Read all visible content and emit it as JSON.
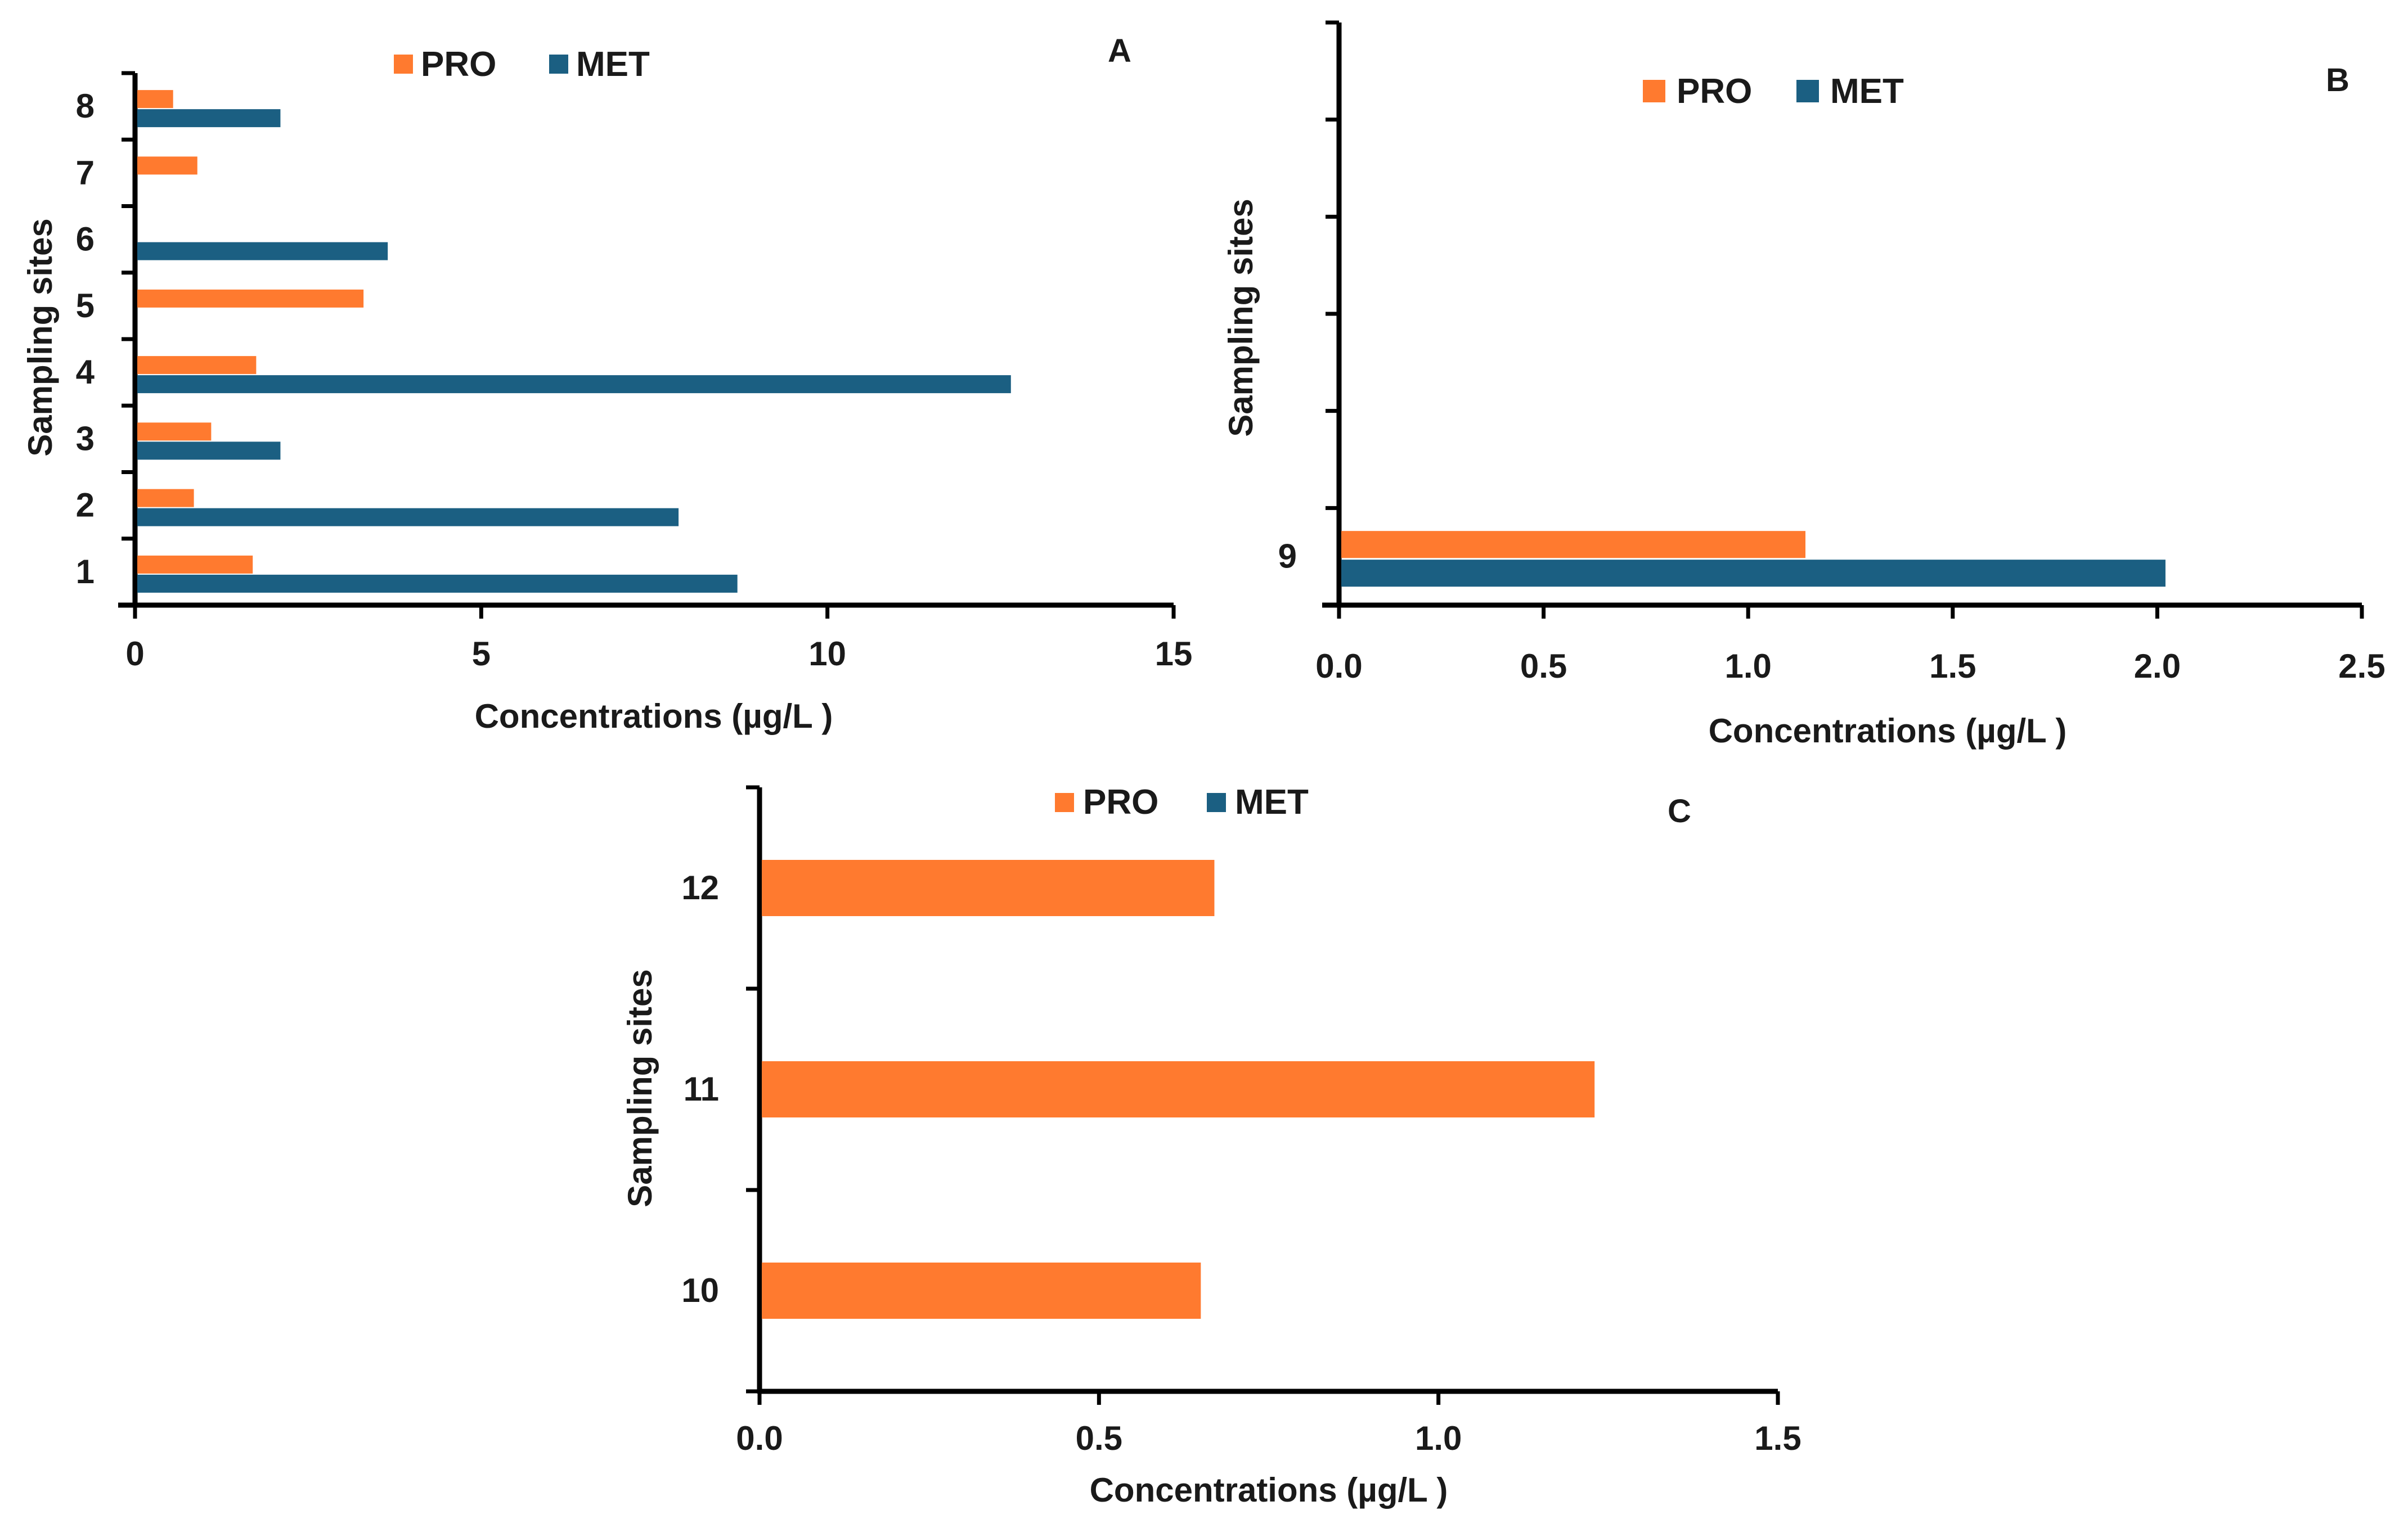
{
  "chart_data": [
    {
      "panel": "A",
      "type": "bar",
      "orientation": "horizontal",
      "title": "A",
      "xlabel": "Concentrations (µg/L )",
      "ylabel": "Sampling sites",
      "categories": [
        "1",
        "2",
        "3",
        "4",
        "5",
        "6",
        "7",
        "8"
      ],
      "series": [
        {
          "name": "PRO",
          "color": "#FF7A2F",
          "values": [
            1.7,
            0.85,
            1.1,
            1.75,
            3.3,
            0,
            0.9,
            0.55
          ]
        },
        {
          "name": "MET",
          "color": "#1B5F82",
          "values": [
            8.7,
            7.85,
            2.1,
            12.65,
            0,
            3.65,
            0,
            2.1
          ]
        }
      ],
      "xlim": [
        0,
        15
      ],
      "xticks": [
        "0",
        "5",
        "10",
        "15"
      ],
      "legend": [
        "PRO",
        "MET"
      ],
      "legend_position": "top-center"
    },
    {
      "panel": "B",
      "type": "bar",
      "orientation": "horizontal",
      "title": "B",
      "xlabel": "Concentrations (µg/L )",
      "ylabel": "Sampling sites",
      "categories": [
        "9"
      ],
      "series": [
        {
          "name": "PRO",
          "color": "#FF7A2F",
          "values": [
            1.14
          ]
        },
        {
          "name": "MET",
          "color": "#1B5F82",
          "values": [
            2.02
          ]
        }
      ],
      "xlim": [
        0,
        2.5
      ],
      "xticks": [
        "0.0",
        "0.5",
        "1.0",
        "1.5",
        "2.0",
        "2.5"
      ],
      "legend": [
        "PRO",
        "MET"
      ],
      "legend_position": "top-center"
    },
    {
      "panel": "C",
      "type": "bar",
      "orientation": "horizontal",
      "title": "C",
      "xlabel": "Concentrations (µg/L )",
      "ylabel": "Sampling sites",
      "categories": [
        "10",
        "11",
        "12"
      ],
      "series": [
        {
          "name": "PRO",
          "color": "#FF7A2F",
          "values": [
            0.65,
            1.23,
            0.67
          ]
        },
        {
          "name": "MET",
          "color": "#1B5F82",
          "values": [
            0,
            0,
            0
          ]
        }
      ],
      "xlim": [
        0,
        1.5
      ],
      "xticks": [
        "0.0",
        "0.5",
        "1.0",
        "1.5"
      ],
      "legend": [
        "PRO",
        "MET"
      ],
      "legend_position": "top-center"
    }
  ]
}
